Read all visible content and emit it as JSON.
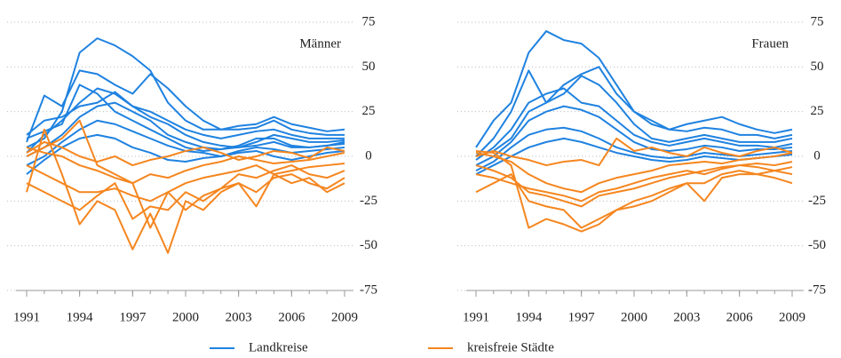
{
  "chart_data": [
    {
      "type": "line",
      "title": "Männer",
      "x": [
        1991,
        1992,
        1993,
        1994,
        1995,
        1996,
        1997,
        1998,
        1999,
        2000,
        2001,
        2002,
        2003,
        2004,
        2005,
        2006,
        2007,
        2008,
        2009
      ],
      "xlim": [
        1991,
        2009
      ],
      "xticks": [
        1991,
        1994,
        1997,
        2000,
        2003,
        2006,
        2009
      ],
      "ylim": [
        -75,
        75
      ],
      "yticks": [
        -75,
        -50,
        -25,
        0,
        25,
        50,
        75
      ],
      "grid": true,
      "series": [
        {
          "name": "Landkreise",
          "color": "#1f82e0",
          "values": [
            [
              5,
              10,
              25,
              58,
              66,
              62,
              56,
              48,
              30,
              20,
              15,
              15,
              17,
              18,
              22,
              18,
              16,
              14,
              15
            ],
            [
              8,
              34,
              28,
              48,
              46,
              40,
              35,
              46,
              38,
              28,
              20,
              15,
              15,
              16,
              20,
              15,
              13,
              12,
              12
            ],
            [
              2,
              12,
              20,
              30,
              38,
              35,
              28,
              22,
              18,
              12,
              8,
              6,
              5,
              8,
              12,
              10,
              8,
              8,
              9
            ],
            [
              0,
              5,
              12,
              22,
              28,
              30,
              25,
              20,
              12,
              8,
              5,
              4,
              6,
              10,
              10,
              6,
              5,
              6,
              7
            ],
            [
              -5,
              0,
              8,
              15,
              20,
              18,
              14,
              10,
              6,
              3,
              2,
              0,
              3,
              5,
              4,
              2,
              3,
              4,
              5
            ],
            [
              10,
              14,
              18,
              40,
              35,
              25,
              20,
              15,
              10,
              5,
              3,
              4,
              5,
              6,
              8,
              5,
              5,
              6,
              8
            ],
            [
              -10,
              -2,
              5,
              10,
              12,
              10,
              5,
              2,
              -2,
              -3,
              -1,
              0,
              2,
              3,
              0,
              -2,
              0,
              2,
              3
            ],
            [
              12,
              20,
              22,
              28,
              30,
              36,
              28,
              25,
              20,
              15,
              12,
              10,
              12,
              14,
              15,
              12,
              10,
              10,
              10
            ]
          ]
        },
        {
          "name": "kreisfreie Städte",
          "color": "#f5861f",
          "values": [
            [
              -20,
              15,
              -10,
              -38,
              -25,
              -30,
              -52,
              -32,
              -54,
              -25,
              -30,
              -20,
              -15,
              -28,
              -10,
              -15,
              -12,
              -20,
              -15
            ],
            [
              0,
              5,
              10,
              20,
              -5,
              -10,
              -15,
              -40,
              -20,
              -30,
              -22,
              -18,
              -10,
              -12,
              -8,
              -5,
              -10,
              -12,
              -8
            ],
            [
              -5,
              -10,
              -15,
              -20,
              -20,
              -18,
              -22,
              -25,
              -20,
              -15,
              -12,
              -10,
              -8,
              -5,
              -10,
              -8,
              -6,
              -5,
              -4
            ],
            [
              5,
              2,
              0,
              -5,
              -8,
              -12,
              -15,
              -10,
              -12,
              -8,
              -5,
              -3,
              0,
              -2,
              -4,
              -3,
              -2,
              0,
              2
            ],
            [
              -15,
              -20,
              -25,
              -30,
              -22,
              -15,
              -35,
              -28,
              -30,
              -20,
              -25,
              -18,
              -15,
              -20,
              -12,
              -10,
              -15,
              -18,
              -12
            ],
            [
              2,
              8,
              5,
              0,
              -3,
              0,
              -5,
              -2,
              0,
              3,
              5,
              2,
              -2,
              0,
              3,
              2,
              -1,
              5,
              3
            ]
          ]
        }
      ]
    },
    {
      "type": "line",
      "title": "Frauen",
      "x": [
        1991,
        1992,
        1993,
        1994,
        1995,
        1996,
        1997,
        1998,
        1999,
        2000,
        2001,
        2002,
        2003,
        2004,
        2005,
        2006,
        2007,
        2008,
        2009
      ],
      "xlim": [
        1991,
        2009
      ],
      "xticks": [
        1991,
        1994,
        1997,
        2000,
        2003,
        2006,
        2009
      ],
      "ylim": [
        -75,
        75
      ],
      "yticks": [
        -75,
        -50,
        -25,
        0,
        25,
        50,
        75
      ],
      "grid": true,
      "series": [
        {
          "color": "#1f82e0",
          "values": [
            [
              5,
              20,
              30,
              58,
              70,
              65,
              63,
              55,
              40,
              25,
              18,
              15,
              18,
              20,
              22,
              18,
              15,
              13,
              15
            ],
            [
              0,
              10,
              25,
              48,
              30,
              40,
              46,
              50,
              35,
              25,
              20,
              15,
              14,
              16,
              15,
              12,
              12,
              10,
              12
            ],
            [
              -2,
              5,
              15,
              30,
              35,
              38,
              30,
              28,
              20,
              12,
              8,
              6,
              8,
              10,
              8,
              6,
              6,
              5,
              7
            ],
            [
              -5,
              0,
              8,
              20,
              25,
              28,
              26,
              22,
              15,
              8,
              4,
              3,
              4,
              6,
              5,
              3,
              4,
              4,
              5
            ],
            [
              -8,
              -3,
              5,
              12,
              15,
              16,
              14,
              10,
              5,
              2,
              0,
              -1,
              0,
              2,
              1,
              0,
              1,
              2,
              3
            ],
            [
              0,
              3,
              10,
              25,
              30,
              35,
              45,
              40,
              30,
              18,
              10,
              8,
              10,
              12,
              10,
              8,
              8,
              8,
              10
            ],
            [
              -10,
              -5,
              0,
              5,
              8,
              10,
              8,
              5,
              2,
              0,
              -2,
              -3,
              -2,
              0,
              -1,
              -2,
              -1,
              0,
              1
            ]
          ]
        },
        {
          "color": "#f5861f",
          "values": [
            [
              3,
              2,
              -5,
              -40,
              -35,
              -38,
              -42,
              -38,
              -30,
              -28,
              -25,
              -20,
              -15,
              -25,
              -12,
              -10,
              -10,
              -12,
              -15
            ],
            [
              -20,
              -15,
              -10,
              -25,
              -28,
              -30,
              -40,
              -35,
              -30,
              -25,
              -22,
              -18,
              -15,
              -15,
              -10,
              -8,
              -10,
              -8,
              -6
            ],
            [
              2,
              0,
              -3,
              -10,
              -15,
              -18,
              -20,
              -15,
              -12,
              -10,
              -8,
              -5,
              -4,
              -3,
              -4,
              -2,
              -1,
              0,
              2
            ],
            [
              -5,
              -8,
              -12,
              -20,
              -22,
              -25,
              -28,
              -22,
              -20,
              -18,
              -15,
              -12,
              -10,
              -8,
              -6,
              -5,
              -4,
              -5,
              -3
            ],
            [
              0,
              3,
              0,
              -2,
              -5,
              -3,
              -2,
              -5,
              10,
              3,
              5,
              2,
              0,
              5,
              2,
              0,
              3,
              5,
              2
            ],
            [
              -10,
              -12,
              -15,
              -18,
              -20,
              -22,
              -25,
              -20,
              -18,
              -15,
              -12,
              -10,
              -8,
              -10,
              -7,
              -5,
              -6,
              -8,
              -10
            ]
          ]
        }
      ]
    }
  ]
}
